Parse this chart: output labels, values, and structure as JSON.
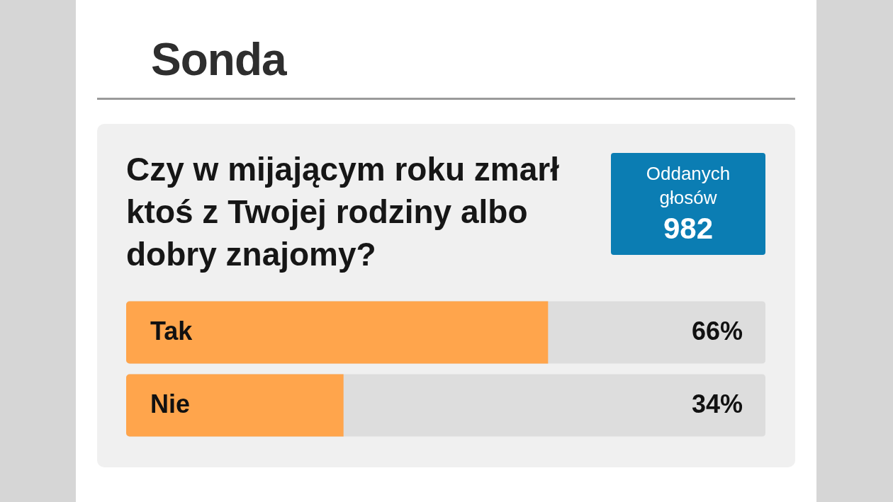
{
  "chart_data": {
    "type": "bar",
    "orientation": "horizontal",
    "title": "Sonda",
    "subtitle": "Czy w mijającym roku zmarł ktoś z Twojej rodziny albo dobry znajomy?",
    "annotations": [
      "Oddanych głosów",
      "982"
    ],
    "categories": [
      "Tak",
      "Nie"
    ],
    "series": [
      {
        "color": "#ffa54c",
        "values": [
          66,
          34
        ],
        "value_labels": [
          "66%",
          "34%"
        ]
      }
    ],
    "xlim": [
      0,
      100
    ],
    "tick_labels": "y",
    "grid": false,
    "legend": false
  }
}
